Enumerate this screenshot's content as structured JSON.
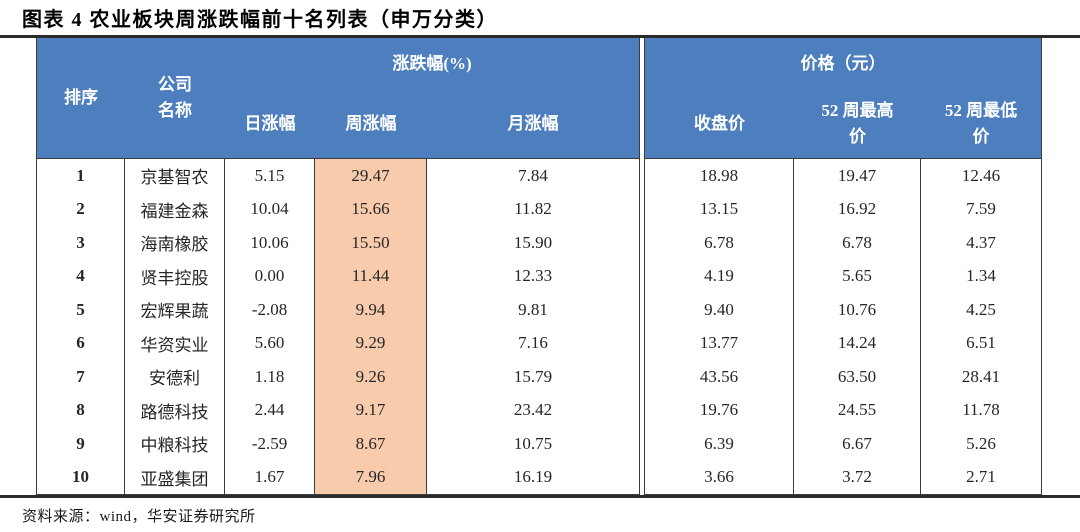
{
  "title": "图表 4 农业板块周涨跌幅前十名列表（申万分类）",
  "source_note": "资料来源：wind，华安证券研究所",
  "colors": {
    "header_bg": "#4d7ebd",
    "header_text": "#ffffff",
    "week_highlight_bg": "#f8cbad",
    "border": "#3d3d3d",
    "rule": "#2b2b2b"
  },
  "table": {
    "header": {
      "rank": "排序",
      "company_line1": "公司",
      "company_line2": "名称",
      "change_group": "涨跌幅(%)",
      "day": "日涨幅",
      "week": "周涨幅",
      "month": "月涨幅",
      "price_group": "价格（元）",
      "close": "收盘价",
      "high52_line1": "52 周最高",
      "high52_line2": "价",
      "low52_line1": "52 周最低",
      "low52_line2": "价"
    },
    "rows": [
      {
        "rank": "1",
        "company": "京基智农",
        "day": "5.15",
        "week": "29.47",
        "month": "7.84",
        "close": "18.98",
        "high52": "19.47",
        "low52": "12.46"
      },
      {
        "rank": "2",
        "company": "福建金森",
        "day": "10.04",
        "week": "15.66",
        "month": "11.82",
        "close": "13.15",
        "high52": "16.92",
        "low52": "7.59"
      },
      {
        "rank": "3",
        "company": "海南橡胶",
        "day": "10.06",
        "week": "15.50",
        "month": "15.90",
        "close": "6.78",
        "high52": "6.78",
        "low52": "4.37"
      },
      {
        "rank": "4",
        "company": "贤丰控股",
        "day": "0.00",
        "week": "11.44",
        "month": "12.33",
        "close": "4.19",
        "high52": "5.65",
        "low52": "1.34"
      },
      {
        "rank": "5",
        "company": "宏辉果蔬",
        "day": "-2.08",
        "week": "9.94",
        "month": "9.81",
        "close": "9.40",
        "high52": "10.76",
        "low52": "4.25"
      },
      {
        "rank": "6",
        "company": "华资实业",
        "day": "5.60",
        "week": "9.29",
        "month": "7.16",
        "close": "13.77",
        "high52": "14.24",
        "low52": "6.51"
      },
      {
        "rank": "7",
        "company": "安德利",
        "day": "1.18",
        "week": "9.26",
        "month": "15.79",
        "close": "43.56",
        "high52": "63.50",
        "low52": "28.41"
      },
      {
        "rank": "8",
        "company": "路德科技",
        "day": "2.44",
        "week": "9.17",
        "month": "23.42",
        "close": "19.76",
        "high52": "24.55",
        "low52": "11.78"
      },
      {
        "rank": "9",
        "company": "中粮科技",
        "day": "-2.59",
        "week": "8.67",
        "month": "10.75",
        "close": "6.39",
        "high52": "6.67",
        "low52": "5.26"
      },
      {
        "rank": "10",
        "company": "亚盛集团",
        "day": "1.67",
        "week": "7.96",
        "month": "16.19",
        "close": "3.66",
        "high52": "3.72",
        "low52": "2.71"
      }
    ]
  }
}
